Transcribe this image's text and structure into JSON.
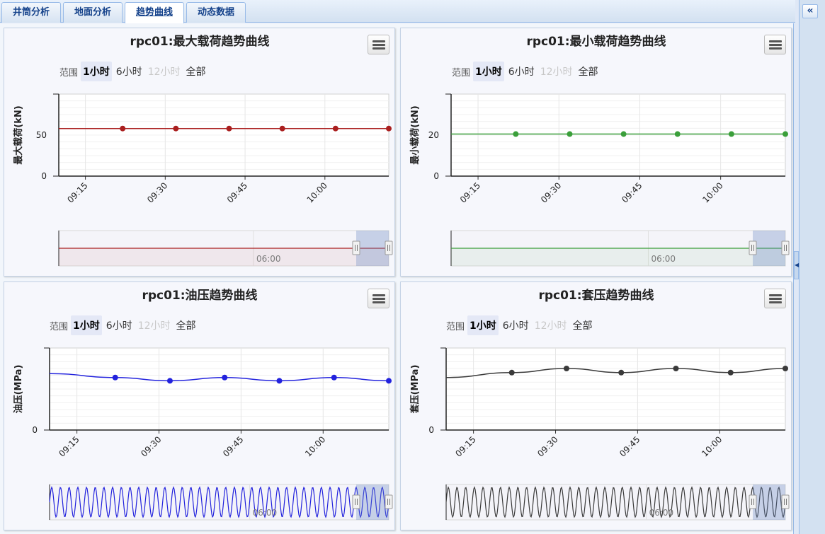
{
  "tabs": [
    {
      "label": "井筒分析",
      "active": false
    },
    {
      "label": "地面分析",
      "active": false
    },
    {
      "label": "趋势曲线",
      "active": true
    },
    {
      "label": "动态数据",
      "active": false
    }
  ],
  "east": {
    "expand_glyph": "«",
    "grip_glyph": "◀"
  },
  "range_selector": {
    "label": "范围",
    "buttons": [
      {
        "label": "1小时",
        "state": "selected"
      },
      {
        "label": "6小时",
        "state": "normal"
      },
      {
        "label": "12小时",
        "state": "disabled"
      },
      {
        "label": "全部",
        "state": "normal"
      }
    ]
  },
  "chart_data": [
    {
      "type": "line",
      "title": "rpc01:最大载荷趋势曲线",
      "ylabel": "最大载荷(kN)",
      "x_ticks": [
        "09:15",
        "09:30",
        "09:45",
        "10:00"
      ],
      "ylim": [
        0,
        100
      ],
      "y_ticks": [
        {
          "value": 0,
          "label": "0"
        },
        {
          "value": 50,
          "label": "50"
        }
      ],
      "color": "#aa1f1f",
      "series": [
        {
          "x": [
            "09:22",
            "09:32",
            "09:42",
            "09:52",
            "10:02",
            "10:12"
          ],
          "values": [
            58,
            58,
            58,
            58,
            58,
            58
          ]
        }
      ],
      "navigator": {
        "label": "06:00",
        "shape": "flat",
        "level": 0.5
      }
    },
    {
      "type": "line",
      "title": "rpc01:最小载荷趋势曲线",
      "ylabel": "最小载荷(kN)",
      "x_ticks": [
        "09:15",
        "09:30",
        "09:45",
        "10:00"
      ],
      "ylim": [
        0,
        40
      ],
      "y_ticks": [
        {
          "value": 0,
          "label": "0"
        },
        {
          "value": 20,
          "label": "20"
        }
      ],
      "color": "#3a9f3a",
      "series": [
        {
          "x": [
            "09:22",
            "09:32",
            "09:42",
            "09:52",
            "10:02",
            "10:12"
          ],
          "values": [
            20.5,
            20.5,
            20.5,
            20.5,
            20.5,
            20.5
          ]
        }
      ],
      "navigator": {
        "label": "06:00",
        "shape": "flat",
        "level": 0.5
      }
    },
    {
      "type": "line",
      "title": "rpc01:油压趋势曲线",
      "ylabel": "油压(MPa)",
      "x_ticks": [
        "09:15",
        "09:30",
        "09:45",
        "10:00"
      ],
      "ylim": [
        0,
        1
      ],
      "y_ticks": [
        {
          "value": 0,
          "label": "0"
        }
      ],
      "color": "#2222dd",
      "series": [
        {
          "x": [
            "09:22",
            "09:32",
            "09:42",
            "09:52",
            "10:02",
            "10:12"
          ],
          "values": [
            0.64,
            0.6,
            0.64,
            0.6,
            0.64,
            0.6
          ]
        }
      ],
      "navigator": {
        "label": "06:00",
        "shape": "wave",
        "level": 0.5
      }
    },
    {
      "type": "line",
      "title": "rpc01:套压趋势曲线",
      "ylabel": "套压(MPa)",
      "x_ticks": [
        "09:15",
        "09:30",
        "09:45",
        "10:00"
      ],
      "ylim": [
        0,
        1
      ],
      "y_ticks": [
        {
          "value": 0,
          "label": "0"
        }
      ],
      "color": "#3a3a3a",
      "series": [
        {
          "x": [
            "09:22",
            "09:32",
            "09:42",
            "09:52",
            "10:02",
            "10:12"
          ],
          "values": [
            0.7,
            0.75,
            0.7,
            0.75,
            0.7,
            0.75
          ]
        }
      ],
      "navigator": {
        "label": "06:00",
        "shape": "wave",
        "level": 0.5
      }
    }
  ]
}
